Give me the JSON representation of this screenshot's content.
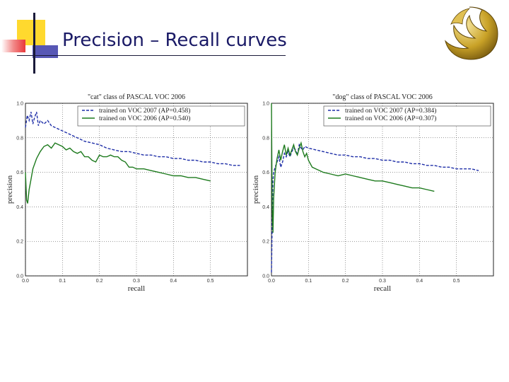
{
  "slide": {
    "title": "Precision – Recall curves"
  },
  "colors": {
    "blue": "#1f2fa8",
    "green": "#1d7a1d",
    "title": "#1a1a66",
    "accent_yellow": "#ffd92e",
    "accent_red": "#e8383b",
    "accent_blue": "#3a3aa8",
    "logo_gold": "#c9a227"
  },
  "logo": {
    "icon": "pegasus-logo-icon"
  },
  "chart_data": [
    {
      "type": "line",
      "title": "\"cat\" class of PASCAL VOC 2006",
      "xlabel": "recall",
      "ylabel": "precision",
      "xlim": [
        0,
        0.6
      ],
      "ylim": [
        0,
        1.0
      ],
      "xticks": [
        "0.0",
        "0.1",
        "0.2",
        "0.3",
        "0.4",
        "0.5"
      ],
      "yticks": [
        "0.0",
        "0.2",
        "0.4",
        "0.6",
        "0.8",
        "1.0"
      ],
      "grid": true,
      "legend": "top-right",
      "series": [
        {
          "name": "trained on VOC 2007 (AP=0.458)",
          "style": "dashed",
          "color": "#1f2fa8",
          "points": [
            [
              0.0,
              0.86
            ],
            [
              0.005,
              0.93
            ],
            [
              0.01,
              0.9
            ],
            [
              0.015,
              0.95
            ],
            [
              0.02,
              0.88
            ],
            [
              0.025,
              0.92
            ],
            [
              0.03,
              0.95
            ],
            [
              0.035,
              0.87
            ],
            [
              0.04,
              0.9
            ],
            [
              0.05,
              0.88
            ],
            [
              0.06,
              0.9
            ],
            [
              0.07,
              0.87
            ],
            [
              0.08,
              0.86
            ],
            [
              0.09,
              0.85
            ],
            [
              0.1,
              0.84
            ],
            [
              0.12,
              0.82
            ],
            [
              0.14,
              0.8
            ],
            [
              0.16,
              0.78
            ],
            [
              0.18,
              0.77
            ],
            [
              0.2,
              0.76
            ],
            [
              0.22,
              0.74
            ],
            [
              0.24,
              0.73
            ],
            [
              0.26,
              0.72
            ],
            [
              0.28,
              0.72
            ],
            [
              0.3,
              0.71
            ],
            [
              0.32,
              0.7
            ],
            [
              0.34,
              0.7
            ],
            [
              0.36,
              0.69
            ],
            [
              0.38,
              0.69
            ],
            [
              0.4,
              0.68
            ],
            [
              0.42,
              0.68
            ],
            [
              0.44,
              0.67
            ],
            [
              0.46,
              0.67
            ],
            [
              0.48,
              0.66
            ],
            [
              0.5,
              0.66
            ],
            [
              0.52,
              0.65
            ],
            [
              0.54,
              0.65
            ],
            [
              0.56,
              0.64
            ],
            [
              0.58,
              0.64
            ]
          ]
        },
        {
          "name": "trained on VOC 2006 (AP=0.540)",
          "style": "solid",
          "color": "#1d7a1d",
          "points": [
            [
              0.0,
              0.6
            ],
            [
              0.003,
              0.44
            ],
            [
              0.006,
              0.42
            ],
            [
              0.01,
              0.5
            ],
            [
              0.015,
              0.56
            ],
            [
              0.02,
              0.62
            ],
            [
              0.03,
              0.68
            ],
            [
              0.04,
              0.72
            ],
            [
              0.05,
              0.75
            ],
            [
              0.06,
              0.76
            ],
            [
              0.07,
              0.74
            ],
            [
              0.08,
              0.77
            ],
            [
              0.09,
              0.76
            ],
            [
              0.1,
              0.75
            ],
            [
              0.11,
              0.73
            ],
            [
              0.12,
              0.74
            ],
            [
              0.13,
              0.72
            ],
            [
              0.14,
              0.71
            ],
            [
              0.15,
              0.72
            ],
            [
              0.16,
              0.69
            ],
            [
              0.17,
              0.69
            ],
            [
              0.18,
              0.67
            ],
            [
              0.19,
              0.66
            ],
            [
              0.2,
              0.7
            ],
            [
              0.21,
              0.69
            ],
            [
              0.22,
              0.69
            ],
            [
              0.23,
              0.7
            ],
            [
              0.24,
              0.69
            ],
            [
              0.25,
              0.69
            ],
            [
              0.26,
              0.67
            ],
            [
              0.27,
              0.66
            ],
            [
              0.28,
              0.63
            ],
            [
              0.29,
              0.63
            ],
            [
              0.3,
              0.62
            ],
            [
              0.32,
              0.62
            ],
            [
              0.34,
              0.61
            ],
            [
              0.36,
              0.6
            ],
            [
              0.38,
              0.59
            ],
            [
              0.4,
              0.58
            ],
            [
              0.42,
              0.58
            ],
            [
              0.44,
              0.57
            ],
            [
              0.46,
              0.57
            ],
            [
              0.48,
              0.56
            ],
            [
              0.5,
              0.55
            ]
          ]
        }
      ]
    },
    {
      "type": "line",
      "title": "\"dog\" class of PASCAL VOC 2006",
      "xlabel": "recall",
      "ylabel": "precision",
      "xlim": [
        0,
        0.6
      ],
      "ylim": [
        0,
        1.0
      ],
      "xticks": [
        "0.0",
        "0.1",
        "0.2",
        "0.3",
        "0.4",
        "0.5"
      ],
      "yticks": [
        "0.0",
        "0.2",
        "0.4",
        "0.6",
        "0.8",
        "1.0"
      ],
      "grid": true,
      "legend": "top-right",
      "series": [
        {
          "name": "trained on VOC 2007 (AP=0.384)",
          "style": "dashed",
          "color": "#1f2fa8",
          "points": [
            [
              0.0,
              0.02
            ],
            [
              0.002,
              0.3
            ],
            [
              0.004,
              0.55
            ],
            [
              0.006,
              0.6
            ],
            [
              0.01,
              0.63
            ],
            [
              0.015,
              0.66
            ],
            [
              0.02,
              0.69
            ],
            [
              0.025,
              0.63
            ],
            [
              0.03,
              0.66
            ],
            [
              0.035,
              0.71
            ],
            [
              0.04,
              0.69
            ],
            [
              0.045,
              0.72
            ],
            [
              0.05,
              0.69
            ],
            [
              0.055,
              0.72
            ],
            [
              0.06,
              0.74
            ],
            [
              0.065,
              0.73
            ],
            [
              0.07,
              0.7
            ],
            [
              0.075,
              0.76
            ],
            [
              0.08,
              0.74
            ],
            [
              0.085,
              0.73
            ],
            [
              0.09,
              0.75
            ],
            [
              0.1,
              0.74
            ],
            [
              0.12,
              0.73
            ],
            [
              0.14,
              0.72
            ],
            [
              0.16,
              0.71
            ],
            [
              0.18,
              0.7
            ],
            [
              0.2,
              0.7
            ],
            [
              0.22,
              0.69
            ],
            [
              0.24,
              0.69
            ],
            [
              0.26,
              0.68
            ],
            [
              0.28,
              0.68
            ],
            [
              0.3,
              0.67
            ],
            [
              0.32,
              0.67
            ],
            [
              0.34,
              0.66
            ],
            [
              0.36,
              0.66
            ],
            [
              0.38,
              0.65
            ],
            [
              0.4,
              0.65
            ],
            [
              0.42,
              0.64
            ],
            [
              0.44,
              0.64
            ],
            [
              0.46,
              0.63
            ],
            [
              0.48,
              0.63
            ],
            [
              0.5,
              0.62
            ],
            [
              0.52,
              0.62
            ],
            [
              0.54,
              0.62
            ],
            [
              0.56,
              0.61
            ]
          ]
        },
        {
          "name": "trained on VOC 2006 (AP=0.307)",
          "style": "solid",
          "color": "#1d7a1d",
          "points": [
            [
              0.0,
              1.0
            ],
            [
              0.002,
              0.4
            ],
            [
              0.004,
              0.25
            ],
            [
              0.006,
              0.45
            ],
            [
              0.01,
              0.6
            ],
            [
              0.015,
              0.68
            ],
            [
              0.02,
              0.73
            ],
            [
              0.025,
              0.67
            ],
            [
              0.03,
              0.72
            ],
            [
              0.035,
              0.76
            ],
            [
              0.04,
              0.7
            ],
            [
              0.045,
              0.74
            ],
            [
              0.05,
              0.7
            ],
            [
              0.055,
              0.73
            ],
            [
              0.06,
              0.76
            ],
            [
              0.065,
              0.72
            ],
            [
              0.07,
              0.7
            ],
            [
              0.075,
              0.74
            ],
            [
              0.08,
              0.77
            ],
            [
              0.085,
              0.72
            ],
            [
              0.09,
              0.69
            ],
            [
              0.095,
              0.71
            ],
            [
              0.1,
              0.67
            ],
            [
              0.11,
              0.63
            ],
            [
              0.12,
              0.62
            ],
            [
              0.14,
              0.6
            ],
            [
              0.16,
              0.59
            ],
            [
              0.18,
              0.58
            ],
            [
              0.2,
              0.59
            ],
            [
              0.22,
              0.58
            ],
            [
              0.24,
              0.57
            ],
            [
              0.26,
              0.56
            ],
            [
              0.28,
              0.55
            ],
            [
              0.3,
              0.55
            ],
            [
              0.32,
              0.54
            ],
            [
              0.34,
              0.53
            ],
            [
              0.36,
              0.52
            ],
            [
              0.38,
              0.51
            ],
            [
              0.4,
              0.51
            ],
            [
              0.42,
              0.5
            ],
            [
              0.44,
              0.49
            ]
          ]
        }
      ]
    }
  ]
}
